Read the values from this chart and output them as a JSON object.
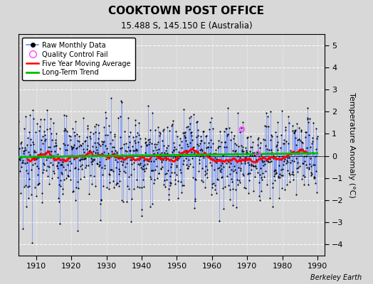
{
  "title": "COOKTOWN POST OFFICE",
  "subtitle": "15.488 S, 145.150 E (Australia)",
  "ylabel": "Temperature Anomaly (°C)",
  "xlim": [
    1905,
    1992
  ],
  "ylim": [
    -4.5,
    5.5
  ],
  "yticks": [
    -4,
    -3,
    -2,
    -1,
    0,
    1,
    2,
    3,
    4,
    5
  ],
  "xticks": [
    1910,
    1920,
    1930,
    1940,
    1950,
    1960,
    1970,
    1980,
    1990
  ],
  "bg_color": "#d8d8d8",
  "plot_bg": "#d8d8d8",
  "line_color": "#6688ff",
  "dot_color": "#000000",
  "ma_color": "#ff0000",
  "trend_color": "#00bb00",
  "qc_color": "#ff44ff",
  "watermark": "Berkeley Earth",
  "seed": 7
}
